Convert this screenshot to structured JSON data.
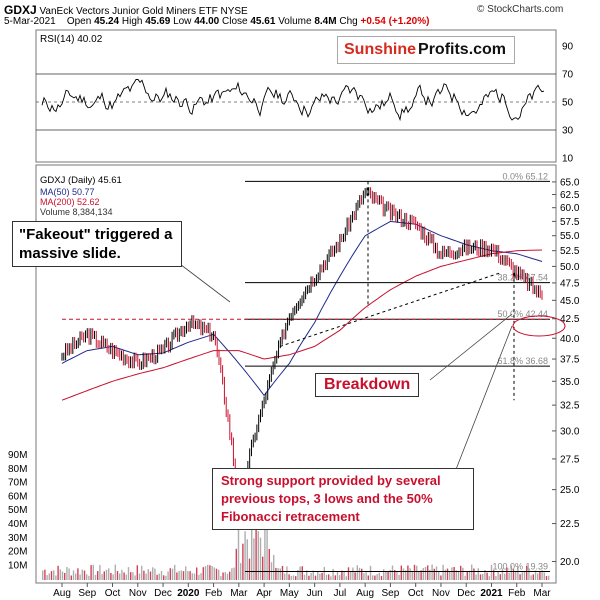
{
  "header": {
    "symbol": "GDXJ",
    "name": "VanEck Vectors Junior Gold Miners ETF",
    "exchange": "NYSE",
    "copyright": "© StockCharts.com",
    "date": "5-Mar-2021",
    "open_label": "Open",
    "open": "45.24",
    "high_label": "High",
    "high": "45.69",
    "low_label": "Low",
    "low": "44.00",
    "close_label": "Close",
    "close": "45.61",
    "volume_label": "Volume",
    "volume": "8.4M",
    "chg_label": "Chg",
    "chg": "+0.54 (+1.20%)"
  },
  "logo": {
    "part1": "Sunshine",
    "part2": "Profits.com"
  },
  "rsi_panel": {
    "label": "RSI(14) 40.02",
    "ticks": [
      "90",
      "70",
      "50",
      "30",
      "10"
    ]
  },
  "price_panel": {
    "legend": {
      "main": "GDXJ (Daily) 45.61",
      "ma50": "MA(50) 50.77",
      "ma200": "MA(200) 52.62",
      "volume": "Volume 8,384,134"
    },
    "volume_ticks": [
      "90M",
      "80M",
      "70M",
      "60M",
      "50M",
      "40M",
      "30M",
      "20M",
      "10M"
    ]
  },
  "fib_labels": [
    "0.0% 65.12",
    "38.2% 47.54",
    "50.0% 42.44",
    "61.8% 36.68",
    "100.0% 19.39"
  ],
  "annotations": {
    "fakeout": "\"Fakeout\" triggered a massive slide.",
    "breakdown": "Breakdown",
    "support": "Strong support provided by several previous tops, 3 lows and the 50% Fibonacci retracement"
  },
  "colors": {
    "price": "#000000",
    "up_candle": "#000000",
    "down_candle": "#c8102e",
    "ma50": "#1f2a8c",
    "ma200": "#c8102e",
    "annotation": "#c8102e",
    "volume": "#9a9a9a"
  },
  "chart_data": {
    "type": "line",
    "title": "GDXJ VanEck Vectors Junior Gold Miners ETF NYSE",
    "x_tick_labels": [
      "Aug",
      "Sep",
      "Oct",
      "Nov",
      "Dec",
      "2020",
      "Feb",
      "Mar",
      "Apr",
      "May",
      "Jun",
      "Jul",
      "Aug",
      "Sep",
      "Oct",
      "Nov",
      "Dec",
      "2021",
      "Feb",
      "Mar"
    ],
    "y_ticks": [
      "65.0",
      "62.5",
      "60.0",
      "57.5",
      "55.0",
      "52.5",
      "50.0",
      "47.5",
      "45.0",
      "42.5",
      "40.0",
      "37.5",
      "35.0",
      "32.5",
      "30.0",
      "27.5",
      "25.0",
      "22.5",
      "20.0"
    ],
    "y_scale": "log",
    "grid": false,
    "series": [
      {
        "name": "GDXJ (Daily)",
        "x": [
          "Aug",
          "Sep",
          "Oct",
          "Nov",
          "Dec",
          "2020",
          "Feb",
          "Mar",
          "Apr",
          "May",
          "Jun",
          "Jul",
          "Aug",
          "Sep",
          "Oct",
          "Nov",
          "Dec",
          "2021",
          "Feb",
          "Mar"
        ],
        "values": [
          38.0,
          40.5,
          38.5,
          37.0,
          38.5,
          42.0,
          40.5,
          24.0,
          33.0,
          43.0,
          48.5,
          54.0,
          63.0,
          59.0,
          57.0,
          52.0,
          53.0,
          53.0,
          49.0,
          45.61
        ]
      },
      {
        "name": "MA(50)",
        "x": [
          "Aug",
          "Sep",
          "Oct",
          "Nov",
          "Dec",
          "2020",
          "Feb",
          "Mar",
          "Apr",
          "May",
          "Jun",
          "Jul",
          "Aug",
          "Sep",
          "Oct",
          "Nov",
          "Dec",
          "2021",
          "Feb",
          "Mar"
        ],
        "values": [
          37.0,
          38.5,
          39.0,
          38.0,
          38.2,
          39.5,
          40.5,
          37.0,
          33.5,
          37.0,
          42.0,
          48.5,
          55.0,
          57.5,
          57.0,
          55.0,
          53.5,
          52.5,
          52.0,
          50.77
        ]
      },
      {
        "name": "MA(200)",
        "x": [
          "Aug",
          "Sep",
          "Oct",
          "Nov",
          "Dec",
          "2020",
          "Feb",
          "Mar",
          "Apr",
          "May",
          "Jun",
          "Jul",
          "Aug",
          "Sep",
          "Oct",
          "Nov",
          "Dec",
          "2021",
          "Feb",
          "Mar"
        ],
        "values": [
          33.0,
          34.0,
          35.0,
          35.8,
          36.5,
          37.5,
          38.5,
          38.5,
          37.5,
          38.0,
          39.0,
          41.0,
          44.0,
          46.5,
          48.5,
          50.0,
          51.0,
          52.0,
          52.5,
          52.62
        ]
      }
    ],
    "rsi": {
      "name": "RSI(14)",
      "last": 40.02,
      "ylim": [
        10,
        90
      ]
    },
    "fibonacci": [
      {
        "level": "0.0%",
        "value": 65.12
      },
      {
        "level": "38.2%",
        "value": 47.54
      },
      {
        "level": "50.0%",
        "value": 42.44
      },
      {
        "level": "61.8%",
        "value": 36.68
      },
      {
        "level": "100.0%",
        "value": 19.39
      }
    ],
    "ylim": [
      19.0,
      66.0
    ]
  }
}
